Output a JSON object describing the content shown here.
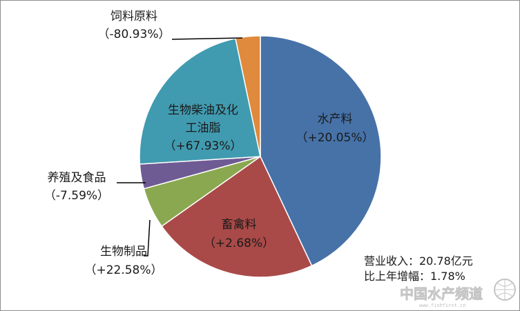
{
  "chart_data": {
    "type": "pie",
    "slices": [
      {
        "name": "水产料",
        "change": "（+20.05%）",
        "value": 43.0,
        "color": "#4672a8"
      },
      {
        "name": "畜禽料",
        "change": "（+2.68%）",
        "value": 22.2,
        "color": "#a94a48"
      },
      {
        "name": "生物制品",
        "change": "（+22.58%）",
        "value": 5.5,
        "color": "#8aa84f"
      },
      {
        "name": "养殖及食品",
        "change": "（-7.59%）",
        "value": 3.3,
        "color": "#6f5b93"
      },
      {
        "name": "生物柴油及化工油脂",
        "name_lines": [
          "生物柴油及化",
          "工油脂"
        ],
        "change": "（+67.93%）",
        "value": 22.7,
        "color": "#419bb0"
      },
      {
        "name": "饲料原料",
        "change": "（-80.93%）",
        "value": 3.3,
        "color": "#df8a3c"
      }
    ]
  },
  "summary": {
    "line1": "营业收入：20.78亿元",
    "line2": "比上年增幅：1.78%"
  },
  "watermark": {
    "text": "中国水产频道",
    "sub": "www.fishfirst.cn"
  }
}
